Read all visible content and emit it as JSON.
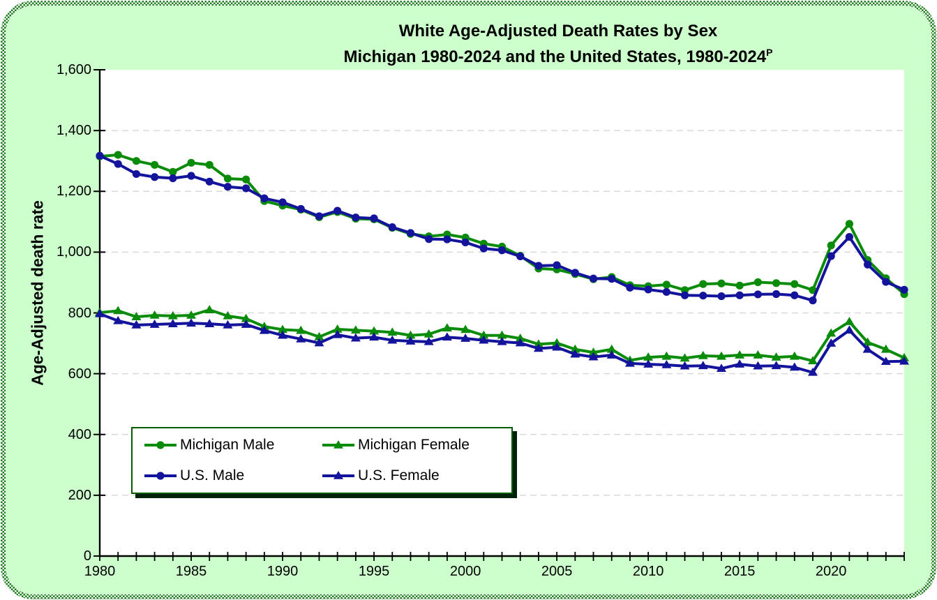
{
  "title": {
    "line1": "White Age-Adjusted Death Rates by Sex",
    "line2": "Michigan 1980-2024 and the United States, 1980-2024",
    "superscript": "P"
  },
  "y_axis": {
    "title": "Age-Adjusted death rate",
    "tick_labels": [
      "0",
      "200",
      "400",
      "600",
      "800",
      "1,000",
      "1,200",
      "1,400",
      "1,600"
    ],
    "tick_values": [
      0,
      200,
      400,
      600,
      800,
      1000,
      1200,
      1400,
      1600
    ]
  },
  "x_axis": {
    "tick_labels": [
      "1980",
      "1985",
      "1990",
      "1995",
      "2000",
      "2005",
      "2010",
      "2015",
      "2020"
    ],
    "tick_values": [
      1980,
      1985,
      1990,
      1995,
      2000,
      2005,
      2010,
      2015,
      2020
    ]
  },
  "legend": {
    "entries": [
      {
        "label": "Michigan Male",
        "series": 0
      },
      {
        "label": "Michigan Female",
        "series": 2
      },
      {
        "label": "U.S. Male",
        "series": 1
      },
      {
        "label": "U.S. Female",
        "series": 3
      }
    ]
  },
  "colors": {
    "background": "#CCFFCC",
    "plot_background": "#ffffff",
    "frame_green": "#1b7e1b",
    "gridline": "#d9d9d9",
    "axis": "#000000",
    "michigan_green": "#0a8c0a",
    "us_navy": "#13139b",
    "legend_border": "#005A00",
    "legend_shadow": "#00220a"
  },
  "chart_data": {
    "type": "line",
    "title": "White Age-Adjusted Death Rates by Sex — Michigan 1980-2024 and the United States, 1980-2024 (P = provisional)",
    "xlabel": "",
    "ylabel": "Age-Adjusted death rate",
    "ylim": [
      0,
      1600
    ],
    "xlim": [
      1980,
      2024
    ],
    "grid": "horizontal-dashed",
    "legend_position": "inside-lower-left",
    "years": [
      1980,
      1981,
      1982,
      1983,
      1984,
      1985,
      1986,
      1987,
      1988,
      1989,
      1990,
      1991,
      1992,
      1993,
      1994,
      1995,
      1996,
      1997,
      1998,
      1999,
      2000,
      2001,
      2002,
      2003,
      2004,
      2005,
      2006,
      2007,
      2008,
      2009,
      2010,
      2011,
      2012,
      2013,
      2014,
      2015,
      2016,
      2017,
      2018,
      2019,
      2020,
      2021,
      2022,
      2023,
      2024
    ],
    "series": [
      {
        "name": "Michigan Male",
        "color": "#0a8c0a",
        "marker": "circle",
        "values": [
          1315,
          1320,
          1300,
          1287,
          1264,
          1294,
          1287,
          1242,
          1239,
          1168,
          1153,
          1140,
          1115,
          1132,
          1110,
          1108,
          1080,
          1060,
          1052,
          1058,
          1048,
          1028,
          1018,
          988,
          946,
          943,
          928,
          911,
          918,
          891,
          888,
          893,
          875,
          895,
          897,
          890,
          901,
          898,
          895,
          875,
          1022,
          1093,
          974,
          914,
          862
        ]
      },
      {
        "name": "U.S. Male",
        "color": "#13139b",
        "marker": "circle",
        "values": [
          1317,
          1290,
          1257,
          1247,
          1243,
          1251,
          1232,
          1215,
          1210,
          1177,
          1164,
          1142,
          1118,
          1136,
          1114,
          1111,
          1082,
          1063,
          1043,
          1042,
          1032,
          1012,
          1006,
          986,
          955,
          957,
          932,
          913,
          912,
          883,
          877,
          869,
          858,
          857,
          855,
          858,
          861,
          862,
          858,
          841,
          987,
          1050,
          959,
          902,
          876
        ]
      },
      {
        "name": "Michigan Female",
        "color": "#0a8c0a",
        "marker": "triangle",
        "values": [
          801,
          807,
          787,
          792,
          790,
          792,
          810,
          790,
          781,
          755,
          745,
          742,
          721,
          746,
          743,
          740,
          736,
          726,
          730,
          750,
          745,
          726,
          726,
          716,
          697,
          701,
          680,
          670,
          680,
          644,
          654,
          657,
          651,
          659,
          657,
          661,
          661,
          654,
          657,
          642,
          733,
          771,
          703,
          680,
          652
        ]
      },
      {
        "name": "U.S. Female",
        "color": "#13139b",
        "marker": "triangle",
        "values": [
          797,
          774,
          760,
          762,
          764,
          766,
          764,
          760,
          762,
          742,
          726,
          714,
          701,
          728,
          717,
          720,
          710,
          707,
          705,
          720,
          716,
          710,
          705,
          701,
          683,
          687,
          664,
          655,
          661,
          634,
          631,
          629,
          625,
          626,
          617,
          631,
          625,
          626,
          621,
          604,
          700,
          743,
          680,
          640,
          641
        ]
      }
    ],
    "draw_order": [
      0,
      2,
      1,
      3
    ]
  }
}
